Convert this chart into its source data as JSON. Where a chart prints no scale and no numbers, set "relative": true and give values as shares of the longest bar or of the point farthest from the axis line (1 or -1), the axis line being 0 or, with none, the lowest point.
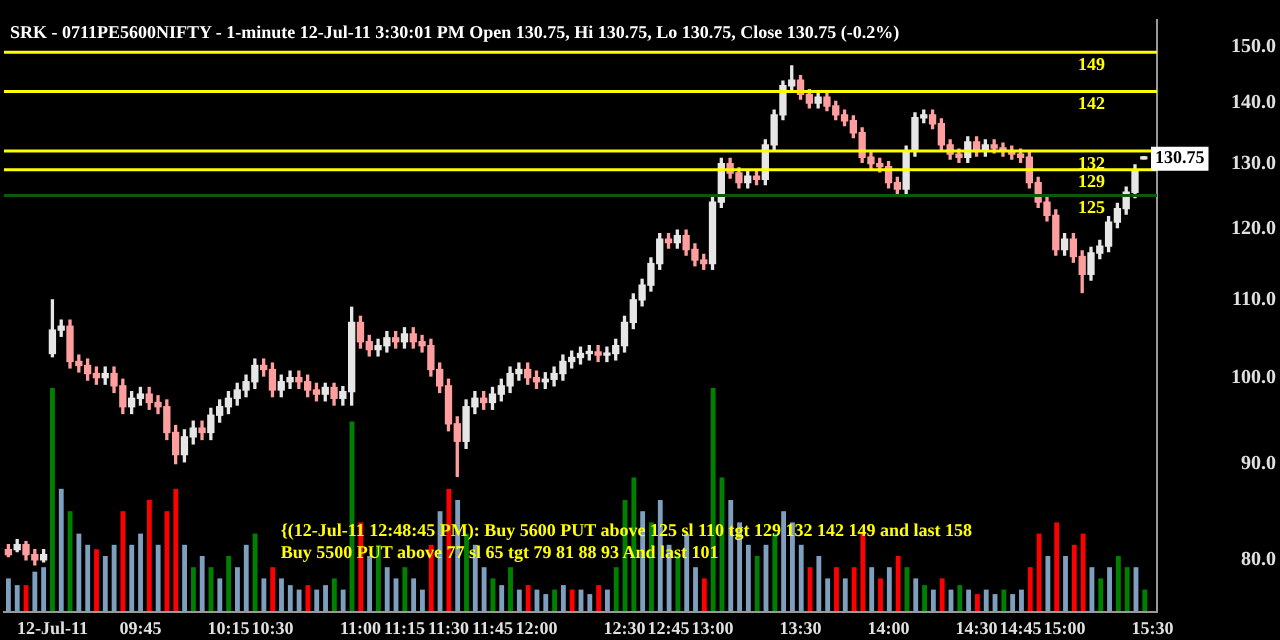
{
  "chart_data": [
    {
      "type": "candlestick",
      "title": "SRK - 0711PE5600NIFTY - 1-minute 12-Jul-11 3:30:01 PM Open 130.75, Hi 130.75, Lo 130.75, Close 130.75 (-0.2%)",
      "categories": [
        null,
        null,
        null,
        null,
        null,
        "12-Jul-11",
        null,
        null,
        null,
        null,
        null,
        null,
        null,
        null,
        null,
        "09:45",
        null,
        null,
        null,
        null,
        null,
        null,
        null,
        null,
        null,
        "10:15",
        null,
        null,
        null,
        null,
        "10:30",
        null,
        null,
        null,
        null,
        null,
        null,
        null,
        null,
        null,
        "11:00",
        null,
        null,
        null,
        null,
        "11:15",
        null,
        null,
        null,
        null,
        "11:30",
        null,
        null,
        null,
        null,
        "11:45",
        null,
        null,
        null,
        null,
        "12:00",
        null,
        null,
        null,
        null,
        null,
        null,
        null,
        null,
        null,
        "12:30",
        null,
        null,
        null,
        null,
        "12:45",
        null,
        null,
        null,
        null,
        "13:00",
        null,
        null,
        null,
        null,
        null,
        null,
        null,
        null,
        null,
        "13:30",
        null,
        null,
        null,
        null,
        null,
        null,
        null,
        null,
        null,
        "14:00",
        null,
        null,
        null,
        null,
        null,
        null,
        null,
        null,
        null,
        "14:30",
        null,
        null,
        null,
        null,
        "14:45",
        null,
        null,
        null,
        null,
        "15:00",
        null,
        null,
        null,
        null,
        null,
        null,
        null,
        null,
        null,
        "15:30"
      ],
      "ohlc": [
        [
          81,
          81.5,
          80.3,
          80.5
        ],
        [
          81,
          82,
          80.8,
          81.5
        ],
        [
          81.5,
          81.8,
          80,
          80.5
        ],
        [
          80.5,
          81,
          79.5,
          80
        ],
        [
          80,
          81,
          79.8,
          80.5
        ],
        [
          103,
          110,
          102.6,
          106
        ],
        [
          106,
          107.3,
          105.2,
          106.5
        ],
        [
          106.5,
          107.3,
          101.2,
          102
        ],
        [
          102,
          102.8,
          100.7,
          101.5
        ],
        [
          101.5,
          102.3,
          99.7,
          100.5
        ],
        [
          100.5,
          101.3,
          99.2,
          100
        ],
        [
          100,
          101.3,
          99.2,
          100.5
        ],
        [
          100.5,
          101.3,
          98.2,
          99
        ],
        [
          99,
          99.8,
          95.7,
          96.5
        ],
        [
          96.5,
          98.3,
          95.7,
          97.5
        ],
        [
          97.5,
          98.8,
          96.7,
          98
        ],
        [
          98,
          98.8,
          96.2,
          97
        ],
        [
          97,
          97.8,
          95.7,
          96.5
        ],
        [
          96.5,
          97.3,
          92.7,
          93.5
        ],
        [
          93.5,
          94.3,
          90,
          91
        ],
        [
          91,
          93.8,
          90.2,
          93
        ],
        [
          93,
          94.8,
          92.2,
          94
        ],
        [
          94,
          94.8,
          92.7,
          93.5
        ],
        [
          93.5,
          96.3,
          92.7,
          95.5
        ],
        [
          95.5,
          97.3,
          94.7,
          96.5
        ],
        [
          96.5,
          98.3,
          95.7,
          97.5
        ],
        [
          97.5,
          99.3,
          96.7,
          98.5
        ],
        [
          98.5,
          100.3,
          97.7,
          99.5
        ],
        [
          99.5,
          102.3,
          98.7,
          101.5
        ],
        [
          101.5,
          102.3,
          100.2,
          101
        ],
        [
          101,
          101.8,
          97.7,
          98.5
        ],
        [
          98.5,
          100.3,
          97.7,
          99.5
        ],
        [
          99.5,
          100.8,
          98.7,
          100
        ],
        [
          100,
          100.8,
          98.7,
          99.5
        ],
        [
          99.5,
          100.3,
          97.7,
          98.5
        ],
        [
          98.5,
          99.3,
          97.2,
          98
        ],
        [
          98,
          99.3,
          97.2,
          98.8
        ],
        [
          98.8,
          99.3,
          96.7,
          97.5
        ],
        [
          97.5,
          98.9,
          96.7,
          98.3
        ],
        [
          98.3,
          109,
          96.7,
          107
        ],
        [
          107,
          107.8,
          103.7,
          104.5
        ],
        [
          104.5,
          105.3,
          102.7,
          103.5
        ],
        [
          103.5,
          104.8,
          102.7,
          104
        ],
        [
          104,
          105.8,
          103.2,
          105
        ],
        [
          105,
          105.8,
          103.7,
          104.5
        ],
        [
          104.5,
          106.3,
          103.7,
          105.5
        ],
        [
          105.5,
          106.3,
          103.7,
          104.5
        ],
        [
          104.5,
          105.3,
          103.2,
          104
        ],
        [
          104,
          104.8,
          100.2,
          101
        ],
        [
          101,
          101.8,
          98.2,
          99
        ],
        [
          99,
          99.8,
          93.7,
          94.5
        ],
        [
          94.5,
          95.3,
          88.6,
          92.5
        ],
        [
          92.5,
          97.3,
          91.7,
          96.5
        ],
        [
          96.5,
          98.3,
          95.7,
          97.5
        ],
        [
          97.5,
          98.3,
          96.2,
          97
        ],
        [
          97,
          98.8,
          96.2,
          98
        ],
        [
          98,
          99.8,
          97.2,
          99
        ],
        [
          99,
          101.3,
          98.2,
          100.5
        ],
        [
          100.5,
          101.8,
          99.7,
          101
        ],
        [
          101,
          101.8,
          99.2,
          100
        ],
        [
          100,
          100.8,
          98.7,
          99.5
        ],
        [
          99.5,
          100.6,
          98.7,
          99.8
        ],
        [
          99.8,
          101.3,
          99,
          100.5
        ],
        [
          100.5,
          102.8,
          99.7,
          102
        ],
        [
          102,
          103.3,
          101.2,
          102.5
        ],
        [
          102.5,
          103.8,
          101.7,
          103
        ],
        [
          103,
          104,
          102.2,
          103.2
        ],
        [
          103.2,
          104,
          102,
          102.8
        ],
        [
          102.8,
          103.8,
          102,
          103
        ],
        [
          103,
          104.8,
          102.2,
          104
        ],
        [
          104,
          107.8,
          103.2,
          107
        ],
        [
          107,
          110.8,
          106.2,
          110
        ],
        [
          110,
          112.8,
          109.2,
          112
        ],
        [
          112,
          115.8,
          111.2,
          115
        ],
        [
          115,
          119.3,
          114.2,
          118.5
        ],
        [
          118.5,
          119.3,
          117.2,
          118
        ],
        [
          118,
          119.8,
          117.2,
          119
        ],
        [
          119,
          119.8,
          116.2,
          117
        ],
        [
          117,
          117.8,
          114.7,
          115.5
        ],
        [
          115.5,
          116.3,
          114.2,
          115
        ],
        [
          115,
          124.8,
          114.2,
          124
        ],
        [
          124,
          130.8,
          123.2,
          130
        ],
        [
          130,
          130.8,
          127.7,
          128.5
        ],
        [
          128.5,
          129.3,
          126.2,
          127
        ],
        [
          127,
          128.8,
          126.2,
          128
        ],
        [
          128,
          128.8,
          126.7,
          127.5
        ],
        [
          127.5,
          133.8,
          126.7,
          133
        ],
        [
          133,
          138.8,
          132.2,
          138
        ],
        [
          138,
          143.8,
          137.2,
          143
        ],
        [
          143,
          146.5,
          142.2,
          144
        ],
        [
          144,
          144.8,
          140.7,
          141.5
        ],
        [
          141.5,
          142.3,
          139.2,
          140
        ],
        [
          140,
          141.8,
          139.2,
          141
        ],
        [
          141,
          141.8,
          138.7,
          139.5
        ],
        [
          139.5,
          140.3,
          137.2,
          138
        ],
        [
          138,
          138.8,
          136.2,
          137
        ],
        [
          137,
          137.8,
          134.2,
          135
        ],
        [
          135,
          135.8,
          130.2,
          131
        ],
        [
          131,
          131.8,
          129.2,
          130
        ],
        [
          130,
          130.8,
          128.7,
          129.5
        ],
        [
          129.5,
          130.3,
          126.2,
          127
        ],
        [
          127,
          127.8,
          125.2,
          126
        ],
        [
          126,
          132.8,
          125.2,
          132
        ],
        [
          132,
          138.3,
          131.2,
          137.5
        ],
        [
          137.5,
          138.8,
          136.7,
          138
        ],
        [
          138,
          138.8,
          135.7,
          136.5
        ],
        [
          136.5,
          137.3,
          132.2,
          133
        ],
        [
          133,
          133.8,
          130.7,
          131.5
        ],
        [
          131.5,
          132.3,
          130.2,
          131
        ],
        [
          131,
          134.3,
          130.2,
          133.5
        ],
        [
          133.5,
          134.3,
          131.2,
          132
        ],
        [
          132,
          133.8,
          131.2,
          133
        ],
        [
          133,
          133.8,
          131.7,
          132.5
        ],
        [
          132.5,
          133.3,
          131.2,
          132
        ],
        [
          132,
          132.8,
          130.7,
          131.5
        ],
        [
          131.5,
          132.3,
          130.2,
          131
        ],
        [
          131,
          131.8,
          126.2,
          127
        ],
        [
          127,
          127.8,
          123.2,
          124
        ],
        [
          124,
          124.8,
          121.2,
          122
        ],
        [
          122,
          122.8,
          116.2,
          117
        ],
        [
          117,
          119.3,
          116.2,
          118.5
        ],
        [
          118.5,
          119.3,
          115.2,
          116
        ],
        [
          116,
          116.8,
          111,
          113.5
        ],
        [
          113.5,
          117.3,
          112.7,
          116.5
        ],
        [
          116.5,
          118.3,
          115.7,
          117.5
        ],
        [
          117.5,
          121.8,
          116.7,
          121
        ],
        [
          121,
          123.8,
          120.2,
          123
        ],
        [
          123,
          126.3,
          122.2,
          125.5
        ],
        [
          125.5,
          129.8,
          124.7,
          129
        ],
        [
          130.75,
          130.75,
          130.75,
          130.75
        ],
        null
      ],
      "colors": [
        "#ff9e9e",
        "#e6e6e6",
        "#ff9e9e",
        "#ff9e9e",
        "#e6e6e6",
        "#e6e6e6",
        "#e6e6e6",
        "#ff9e9e",
        "#ff9e9e",
        "#ff9e9e",
        "#ff9e9e",
        "#e6e6e6",
        "#ff9e9e",
        "#ff9e9e",
        "#e6e6e6",
        "#e6e6e6",
        "#ff9e9e",
        "#ff9e9e",
        "#ff9e9e",
        "#ff9e9e",
        "#e6e6e6",
        "#e6e6e6",
        "#ff9e9e",
        "#e6e6e6",
        "#e6e6e6",
        "#e6e6e6",
        "#e6e6e6",
        "#e6e6e6",
        "#e6e6e6",
        "#ff9e9e",
        "#ff9e9e",
        "#e6e6e6",
        "#e6e6e6",
        "#ff9e9e",
        "#ff9e9e",
        "#ff9e9e",
        "#e6e6e6",
        "#ff9e9e",
        "#e6e6e6",
        "#e6e6e6",
        "#ff9e9e",
        "#ff9e9e",
        "#e6e6e6",
        "#e6e6e6",
        "#ff9e9e",
        "#e6e6e6",
        "#ff9e9e",
        "#ff9e9e",
        "#ff9e9e",
        "#ff9e9e",
        "#ff9e9e",
        "#ff9e9e",
        "#e6e6e6",
        "#e6e6e6",
        "#ff9e9e",
        "#e6e6e6",
        "#e6e6e6",
        "#e6e6e6",
        "#e6e6e6",
        "#ff9e9e",
        "#ff9e9e",
        "#e6e6e6",
        "#e6e6e6",
        "#e6e6e6",
        "#e6e6e6",
        "#e6e6e6",
        "#e6e6e6",
        "#ff9e9e",
        "#e6e6e6",
        "#e6e6e6",
        "#e6e6e6",
        "#e6e6e6",
        "#e6e6e6",
        "#e6e6e6",
        "#e6e6e6",
        "#ff9e9e",
        "#e6e6e6",
        "#ff9e9e",
        "#ff9e9e",
        "#ff9e9e",
        "#e6e6e6",
        "#e6e6e6",
        "#ff9e9e",
        "#ff9e9e",
        "#e6e6e6",
        "#ff9e9e",
        "#e6e6e6",
        "#e6e6e6",
        "#e6e6e6",
        "#e6e6e6",
        "#ff9e9e",
        "#ff9e9e",
        "#e6e6e6",
        "#ff9e9e",
        "#ff9e9e",
        "#ff9e9e",
        "#ff9e9e",
        "#ff9e9e",
        "#ff9e9e",
        "#ff9e9e",
        "#ff9e9e",
        "#ff9e9e",
        "#e6e6e6",
        "#e6e6e6",
        "#e6e6e6",
        "#ff9e9e",
        "#ff9e9e",
        "#ff9e9e",
        "#ff9e9e",
        "#e6e6e6",
        "#ff9e9e",
        "#e6e6e6",
        "#ff9e9e",
        "#ff9e9e",
        "#ff9e9e",
        "#ff9e9e",
        "#ff9e9e",
        "#ff9e9e",
        "#ff9e9e",
        "#ff9e9e",
        "#e6e6e6",
        "#ff9e9e",
        "#ff9e9e",
        "#e6e6e6",
        "#e6e6e6",
        "#e6e6e6",
        "#e6e6e6",
        "#e6e6e6",
        "#e6e6e6",
        "#e6e6e6",
        "#e6e6e6"
      ],
      "log": true,
      "ylim": [
        75,
        155
      ],
      "yticks": [
        {
          "value": 80,
          "label": "80.0"
        },
        {
          "value": 90,
          "label": "90.0"
        },
        {
          "value": 100,
          "label": "100.0"
        },
        {
          "value": 110,
          "label": "110.0"
        },
        {
          "value": 120,
          "label": "120.0"
        },
        {
          "value": 130,
          "label": "130.0"
        },
        {
          "value": 140,
          "label": "140.0"
        },
        {
          "value": 150,
          "label": "150.0"
        }
      ],
      "ref_lines": [
        {
          "axis": "y",
          "value": 149,
          "label": "149",
          "color": "#ffff00"
        },
        {
          "axis": "y",
          "value": 142,
          "label": "142",
          "color": "#ffff00"
        },
        {
          "axis": "y",
          "value": 132,
          "label": "132",
          "color": "#ffff00"
        },
        {
          "axis": "y",
          "value": 129,
          "label": "129",
          "color": "#ffff00"
        },
        {
          "axis": "y",
          "value": 125,
          "label": "125",
          "color": "#0a5a0a"
        }
      ],
      "annotations": [
        "{(12-Jul-11 12:48:45 PM): Buy 5600 PUT above 125 sl 110 tgt 129 132 142 149 and last 158",
        "Buy 5500 PUT above 77 sl 65 tgt 79 81 88 93 And last 101",
        {
          "text": "130.75",
          "y": 130.75
        }
      ]
    },
    {
      "type": "bar",
      "relative": true,
      "tick_labels": false,
      "categories": [
        null,
        null,
        null,
        null,
        null,
        null,
        null,
        null,
        null,
        null,
        null,
        null,
        null,
        null,
        null,
        null,
        null,
        null,
        null,
        null,
        null,
        null,
        null,
        null,
        null,
        null,
        null,
        null,
        null,
        null,
        null,
        null,
        null,
        null,
        null,
        null,
        null,
        null,
        null,
        null,
        null,
        null,
        null,
        null,
        null,
        null,
        null,
        null,
        null,
        null,
        null,
        null,
        null,
        null,
        null,
        null,
        null,
        null,
        null,
        null,
        null,
        null,
        null,
        null,
        null,
        null,
        null,
        null,
        null,
        null,
        null,
        null,
        null,
        null,
        null,
        null,
        null,
        null,
        null,
        null,
        null,
        null,
        null,
        null,
        null,
        null,
        null,
        null,
        null,
        null,
        null,
        null,
        null,
        null,
        null,
        null,
        null,
        null,
        null,
        null,
        null,
        null,
        null,
        null,
        null,
        null,
        null,
        null,
        null,
        null,
        null,
        null,
        null,
        null,
        null,
        null,
        null,
        null,
        null,
        null,
        null,
        null,
        null,
        null,
        null,
        null,
        null,
        null,
        null,
        null,
        null
      ],
      "values": [
        0.15,
        0.12,
        0.12,
        0.18,
        0.2,
        1.0,
        0.55,
        0.45,
        0.35,
        0.3,
        0.28,
        0.25,
        0.3,
        0.45,
        0.3,
        0.35,
        0.5,
        0.3,
        0.45,
        0.55,
        0.3,
        0.2,
        0.25,
        0.2,
        0.15,
        0.25,
        0.2,
        0.3,
        0.35,
        0.15,
        0.2,
        0.15,
        0.12,
        0.1,
        0.12,
        0.1,
        0.12,
        0.15,
        0.1,
        0.85,
        0.4,
        0.25,
        0.3,
        0.2,
        0.15,
        0.2,
        0.15,
        0.1,
        0.3,
        0.45,
        0.55,
        0.5,
        0.35,
        0.3,
        0.2,
        0.15,
        0.12,
        0.2,
        0.1,
        0.12,
        0.1,
        0.08,
        0.1,
        0.12,
        0.1,
        0.1,
        0.08,
        0.12,
        0.1,
        0.2,
        0.5,
        0.6,
        0.45,
        0.4,
        0.5,
        0.3,
        0.25,
        0.35,
        0.2,
        0.15,
        1.0,
        0.6,
        0.5,
        0.4,
        0.3,
        0.25,
        0.3,
        0.35,
        0.45,
        0.4,
        0.3,
        0.2,
        0.25,
        0.15,
        0.2,
        0.15,
        0.2,
        0.35,
        0.2,
        0.15,
        0.2,
        0.25,
        0.2,
        0.15,
        0.12,
        0.1,
        0.15,
        0.1,
        0.12,
        0.1,
        0.08,
        0.1,
        0.08,
        0.1,
        0.08,
        0.1,
        0.2,
        0.35,
        0.25,
        0.4,
        0.25,
        0.3,
        0.35,
        0.2,
        0.15,
        0.2,
        0.25,
        0.2,
        0.2,
        0.1,
        null
      ],
      "colors": [
        "#7f9fbf",
        "#7f9fbf",
        "#ff0000",
        "#7f9fbf",
        "#7f9fbf",
        "#008000",
        "#7f9fbf",
        "#008000",
        "#7f9fbf",
        "#7f9fbf",
        "#ff0000",
        "#7f9fbf",
        "#7f9fbf",
        "#ff0000",
        "#7f9fbf",
        "#7f9fbf",
        "#ff0000",
        "#7f9fbf",
        "#ff0000",
        "#ff0000",
        "#7f9fbf",
        "#008000",
        "#7f9fbf",
        "#008000",
        "#7f9fbf",
        "#008000",
        "#7f9fbf",
        "#7f9fbf",
        "#008000",
        "#7f9fbf",
        "#ff0000",
        "#7f9fbf",
        "#7f9fbf",
        "#7f9fbf",
        "#ff0000",
        "#7f9fbf",
        "#7f9fbf",
        "#008000",
        "#7f9fbf",
        "#008000",
        "#ff0000",
        "#7f9fbf",
        "#008000",
        "#7f9fbf",
        "#7f9fbf",
        "#008000",
        "#7f9fbf",
        "#7f9fbf",
        "#ff0000",
        "#7f9fbf",
        "#ff0000",
        "#7f9fbf",
        "#008000",
        "#7f9fbf",
        "#7f9fbf",
        "#008000",
        "#7f9fbf",
        "#008000",
        "#7f9fbf",
        "#ff0000",
        "#7f9fbf",
        "#7f9fbf",
        "#008000",
        "#7f9fbf",
        "#ff0000",
        "#7f9fbf",
        "#7f9fbf",
        "#ff0000",
        "#7f9fbf",
        "#008000",
        "#008000",
        "#008000",
        "#7f9fbf",
        "#008000",
        "#7f9fbf",
        "#7f9fbf",
        "#008000",
        "#7f9fbf",
        "#7f9fbf",
        "#ff0000",
        "#008000",
        "#008000",
        "#7f9fbf",
        "#7f9fbf",
        "#7f9fbf",
        "#008000",
        "#7f9fbf",
        "#008000",
        "#7f9fbf",
        "#7f9fbf",
        "#7f9fbf",
        "#ff0000",
        "#7f9fbf",
        "#7f9fbf",
        "#ff0000",
        "#7f9fbf",
        "#ff0000",
        "#ff0000",
        "#7f9fbf",
        "#ff0000",
        "#7f9fbf",
        "#ff0000",
        "#008000",
        "#7f9fbf",
        "#008000",
        "#7f9fbf",
        "#ff0000",
        "#7f9fbf",
        "#008000",
        "#7f9fbf",
        "#ff0000",
        "#7f9fbf",
        "#7f9fbf",
        "#008000",
        "#7f9fbf",
        "#7f9fbf",
        "#ff0000",
        "#ff0000",
        "#7f9fbf",
        "#ff0000",
        "#7f9fbf",
        "#ff0000",
        "#ff0000",
        "#7f9fbf",
        "#008000",
        "#7f9fbf",
        "#008000",
        "#008000",
        "#7f9fbf",
        "#008000",
        "#7f9fbf"
      ]
    }
  ]
}
